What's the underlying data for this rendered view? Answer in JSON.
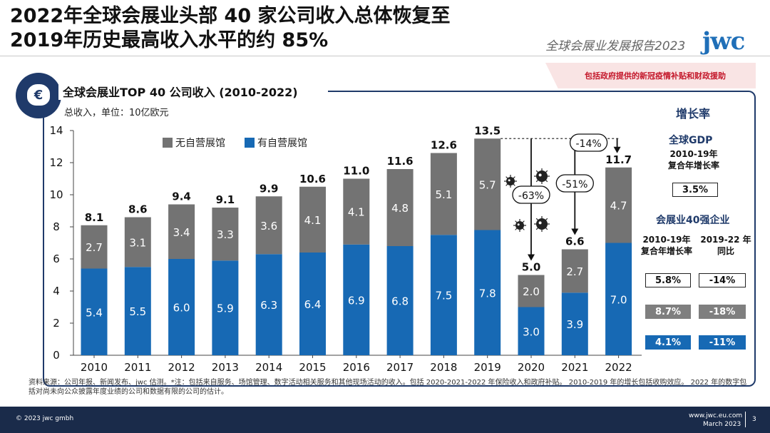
{
  "header": {
    "title_line1": "2022年全球会展业头部 40 家公司收入总体恢复至",
    "title_line2": "2019年历史最高收入水平的约 85%",
    "report_name": "全球会展业发展报告2023",
    "logo_text": "jwc"
  },
  "banner": {
    "text": "包括政府提供的新冠疫情补贴和财政援助"
  },
  "panel": {
    "icon": "euro-money-bag-icon",
    "title": "全球会展业TOP 40 公司收入 (2010-2022)",
    "unit": "总收入，单位：10亿欧元"
  },
  "chart_data": {
    "type": "bar",
    "stacked": true,
    "title": "全球会展业TOP 40 公司收入 (2010-2022)",
    "ylabel": "总收入，单位：10亿欧元",
    "ylim": [
      0,
      14
    ],
    "yticks": [
      0,
      2,
      4,
      6,
      8,
      10,
      12,
      14
    ],
    "categories": [
      "2010",
      "2011",
      "2012",
      "2013",
      "2014",
      "2015",
      "2016",
      "2017",
      "2018",
      "2019",
      "2020",
      "2021",
      "2022"
    ],
    "series": [
      {
        "name": "有自营展馆",
        "color": "#1769b4",
        "values": [
          5.4,
          5.5,
          6.0,
          5.9,
          6.3,
          6.4,
          6.9,
          6.8,
          7.5,
          7.8,
          3.0,
          3.9,
          7.0
        ]
      },
      {
        "name": "无自营展馆",
        "color": "#737373",
        "values": [
          2.7,
          3.1,
          3.4,
          3.3,
          3.6,
          4.1,
          4.1,
          4.8,
          5.1,
          5.7,
          2.0,
          2.7,
          4.7
        ]
      }
    ],
    "totals": [
      "8.1",
      "8.6",
      "9.4",
      "9.1",
      "9.9",
      "10.6",
      "11.0",
      "11.6",
      "12.6",
      "13.5",
      "5.0",
      "6.6",
      "11.7"
    ],
    "annotations": [
      {
        "label": "-63%",
        "from": "2019",
        "to": "2020"
      },
      {
        "label": "-51%",
        "from": "2019",
        "to": "2021"
      },
      {
        "label": "-14%",
        "from": "2019",
        "to": "2022"
      }
    ],
    "legend": [
      "无自营展馆",
      "有自营展馆"
    ]
  },
  "growth": {
    "title": "增长率",
    "gdp_head": "全球GDP",
    "gdp_sub_1": "2010-19年",
    "gdp_sub_2": "复合年增长率",
    "gdp_value": "3.5%",
    "top40_head": "会展业40强企业",
    "col1_line1": "2010-19年",
    "col1_line2": "复合年增长率",
    "col2_line1": "2019-22 年",
    "col2_line2": "同比",
    "rows": [
      {
        "cagr": "5.8%",
        "yoy": "-14%"
      },
      {
        "cagr": "8.7%",
        "yoy": "-18%"
      },
      {
        "cagr": "4.1%",
        "yoy": "-11%"
      }
    ]
  },
  "footnote": "资料来源：公司年报、新闻发布、jwc 估测。*注：包括来自服务、场馆管理、数字活动相关服务和其他现场活动的收入。包括 2020-2021-2022 年保险收入和政府补贴。 2010-2019 年的增长包括收购效应。 2022 年的数字包括对尚未向公众披露年度业绩的公司和数据有限的公司的估计。",
  "footer": {
    "copyright": "© 2023 jwc gmbh",
    "url": "www.jwc.eu.com",
    "date": "March 2023",
    "page": "3"
  }
}
